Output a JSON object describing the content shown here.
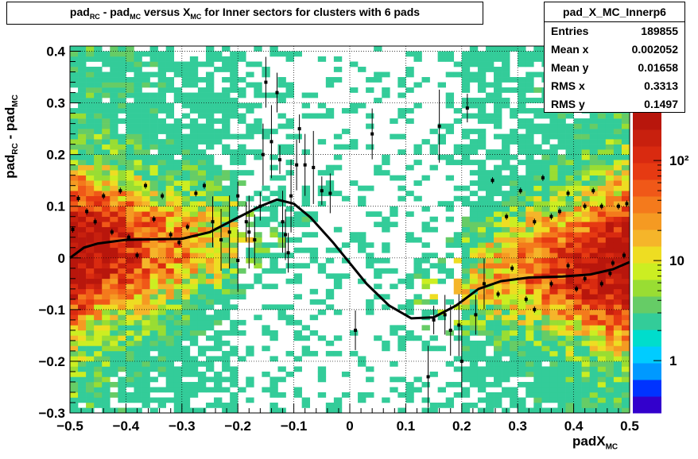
{
  "title": {
    "t1": "pad",
    "s1": "RC",
    "t2": " - pad",
    "s2": "MC",
    "t3": " versus X",
    "s3": "MC",
    "t4": " for Inner sectors for clusters with 6 pads"
  },
  "stats": {
    "name": "pad_X_MC_Innerp6",
    "rows": [
      {
        "label": "Entries",
        "value": "189855"
      },
      {
        "label": "Mean x",
        "value": "0.002052"
      },
      {
        "label": "Mean y",
        "value": "0.01658"
      },
      {
        "label": "RMS x",
        "value": "0.3313"
      },
      {
        "label": "RMS y",
        "value": "0.1497"
      }
    ]
  },
  "xlabel": {
    "main": "padX",
    "sub": "MC"
  },
  "ylabel": {
    "t1": "pad",
    "s1": "RC",
    "t2": " - pad",
    "s2": "MC"
  },
  "chart_data": {
    "type": "heatmap",
    "xlim": [
      -0.5,
      0.5
    ],
    "ylim": [
      -0.3,
      0.41
    ],
    "xticks": [
      "−0.5",
      "−0.4",
      "−0.3",
      "−0.2",
      "−0.1",
      "0",
      "0.1",
      "0.2",
      "0.3",
      "0.4",
      "0.5"
    ],
    "xtick_values": [
      -0.5,
      -0.4,
      -0.3,
      -0.2,
      -0.1,
      0,
      0.1,
      0.2,
      0.3,
      0.4,
      0.5
    ],
    "yticks": [
      "−0.3",
      "−0.2",
      "−0.1",
      "0",
      "0.1",
      "0.2",
      "0.3",
      "0.4"
    ],
    "ytick_values": [
      -0.3,
      -0.2,
      -0.1,
      0,
      0.1,
      0.2,
      0.3,
      0.4
    ],
    "grid": true,
    "log_z": true,
    "colorbar_labels": [
      "1",
      "10",
      "10²"
    ],
    "colorbar_values": [
      1,
      10,
      100
    ],
    "colorbar_range": [
      0.3,
      300
    ],
    "palette": [
      "#3300cc",
      "#0033ff",
      "#0099ff",
      "#00ccff",
      "#00ddcc",
      "#33cc99",
      "#66cc66",
      "#99dd33",
      "#ccee22",
      "#eedd22",
      "#f5b52a",
      "#f59a22",
      "#f47a1c",
      "#f05818",
      "#e63a12",
      "#d92a10",
      "#c8200e",
      "#b8160c"
    ],
    "profile_points": [
      {
        "x": -0.495,
        "y": 0.055
      },
      {
        "x": -0.485,
        "y": 0.115
      },
      {
        "x": -0.47,
        "y": 0.09
      },
      {
        "x": -0.455,
        "y": 0.07
      },
      {
        "x": -0.44,
        "y": 0.12
      },
      {
        "x": -0.425,
        "y": 0.05
      },
      {
        "x": -0.41,
        "y": 0.13
      },
      {
        "x": -0.395,
        "y": 0.04
      },
      {
        "x": -0.38,
        "y": 0.005
      },
      {
        "x": -0.365,
        "y": 0.14
      },
      {
        "x": -0.35,
        "y": 0.075
      },
      {
        "x": -0.335,
        "y": 0.12
      },
      {
        "x": -0.32,
        "y": 0.045
      },
      {
        "x": -0.305,
        "y": 0.03
      },
      {
        "x": -0.29,
        "y": 0.06
      },
      {
        "x": -0.275,
        "y": 0.125
      },
      {
        "x": -0.26,
        "y": 0.14
      },
      {
        "x": -0.245,
        "y": 0.07
      },
      {
        "x": -0.23,
        "y": 0.035
      },
      {
        "x": -0.215,
        "y": 0.05
      },
      {
        "x": -0.2,
        "y": 0.12
      },
      {
        "x": -0.185,
        "y": 0.07
      },
      {
        "x": -0.17,
        "y": 0.035
      },
      {
        "x": -0.155,
        "y": 0.2
      },
      {
        "x": -0.14,
        "y": 0.225
      },
      {
        "x": -0.125,
        "y": 0.19
      },
      {
        "x": -0.11,
        "y": 0.01
      },
      {
        "x": -0.095,
        "y": 0.18
      },
      {
        "x": -0.08,
        "y": 0.18
      },
      {
        "x": -0.065,
        "y": 0.175
      },
      {
        "x": -0.05,
        "y": 0.13
      },
      {
        "x": -0.035,
        "y": 0.125
      },
      {
        "x": -0.15,
        "y": 0.34
      },
      {
        "x": -0.2,
        "y": -0.005
      },
      {
        "x": -0.18,
        "y": 0.05
      },
      {
        "x": -0.16,
        "y": 0.1
      },
      {
        "x": -0.13,
        "y": 0.32
      },
      {
        "x": -0.115,
        "y": 0.045
      },
      {
        "x": -0.12,
        "y": 0.07
      },
      {
        "x": -0.105,
        "y": 0.12
      },
      {
        "x": -0.09,
        "y": 0.25
      },
      {
        "x": 0.01,
        "y": -0.14
      },
      {
        "x": 0.04,
        "y": 0.24
      },
      {
        "x": 0.14,
        "y": -0.23
      },
      {
        "x": 0.16,
        "y": 0.255
      },
      {
        "x": 0.15,
        "y": -0.12
      },
      {
        "x": 0.17,
        "y": -0.11
      },
      {
        "x": 0.18,
        "y": -0.14
      },
      {
        "x": 0.195,
        "y": -0.13
      },
      {
        "x": 0.2,
        "y": -0.2
      },
      {
        "x": 0.21,
        "y": 0.29
      },
      {
        "x": 0.225,
        "y": -0.11
      },
      {
        "x": 0.24,
        "y": -0.05
      },
      {
        "x": 0.255,
        "y": 0.15
      },
      {
        "x": 0.265,
        "y": -0.07
      },
      {
        "x": 0.28,
        "y": 0.08
      },
      {
        "x": 0.29,
        "y": -0.02
      },
      {
        "x": 0.305,
        "y": 0.13
      },
      {
        "x": 0.315,
        "y": -0.08
      },
      {
        "x": 0.33,
        "y": -0.1
      },
      {
        "x": 0.345,
        "y": 0.155
      },
      {
        "x": 0.36,
        "y": 0.08
      },
      {
        "x": 0.375,
        "y": 0.09
      },
      {
        "x": 0.39,
        "y": 0.125
      },
      {
        "x": 0.405,
        "y": -0.06
      },
      {
        "x": 0.42,
        "y": 0.1
      },
      {
        "x": 0.435,
        "y": 0.13
      },
      {
        "x": 0.45,
        "y": 0.1
      },
      {
        "x": 0.465,
        "y": -0.03
      },
      {
        "x": 0.48,
        "y": 0.1
      },
      {
        "x": 0.495,
        "y": 0.105
      },
      {
        "x": 0.33,
        "y": 0.07
      },
      {
        "x": 0.36,
        "y": -0.05
      },
      {
        "x": 0.39,
        "y": -0.015
      },
      {
        "x": 0.42,
        "y": -0.04
      },
      {
        "x": 0.45,
        "y": -0.05
      },
      {
        "x": 0.47,
        "y": -0.01
      },
      {
        "x": 0.49,
        "y": 0.005
      }
    ],
    "fit_curve": [
      {
        "x": -0.5,
        "y": 0.0
      },
      {
        "x": -0.475,
        "y": 0.02
      },
      {
        "x": -0.45,
        "y": 0.028
      },
      {
        "x": -0.4,
        "y": 0.035
      },
      {
        "x": -0.35,
        "y": 0.036
      },
      {
        "x": -0.3,
        "y": 0.037
      },
      {
        "x": -0.25,
        "y": 0.05
      },
      {
        "x": -0.2,
        "y": 0.078
      },
      {
        "x": -0.16,
        "y": 0.1
      },
      {
        "x": -0.13,
        "y": 0.113
      },
      {
        "x": -0.1,
        "y": 0.105
      },
      {
        "x": -0.07,
        "y": 0.078
      },
      {
        "x": -0.03,
        "y": 0.03
      },
      {
        "x": 0.0,
        "y": -0.01
      },
      {
        "x": 0.03,
        "y": -0.05
      },
      {
        "x": 0.07,
        "y": -0.092
      },
      {
        "x": 0.11,
        "y": -0.117
      },
      {
        "x": 0.15,
        "y": -0.115
      },
      {
        "x": 0.19,
        "y": -0.092
      },
      {
        "x": 0.23,
        "y": -0.06
      },
      {
        "x": 0.27,
        "y": -0.045
      },
      {
        "x": 0.32,
        "y": -0.038
      },
      {
        "x": 0.38,
        "y": -0.036
      },
      {
        "x": 0.43,
        "y": -0.032
      },
      {
        "x": 0.47,
        "y": -0.022
      },
      {
        "x": 0.5,
        "y": -0.008
      }
    ]
  }
}
